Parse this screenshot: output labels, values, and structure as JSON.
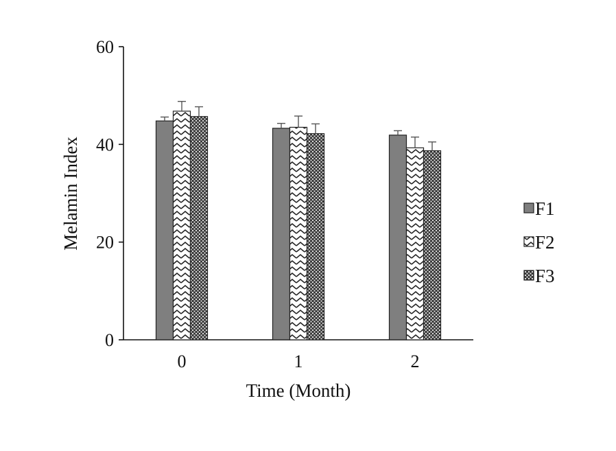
{
  "chart_data": {
    "type": "bar",
    "title": "",
    "xlabel": "Time (Month)",
    "ylabel": "Melamin Index",
    "categories": [
      "0",
      "1",
      "2"
    ],
    "ylim": [
      0,
      60
    ],
    "yticks": [
      "0",
      "20",
      "40",
      "60"
    ],
    "grid": false,
    "legend_position": "right",
    "series": [
      {
        "name": "F1",
        "values": [
          44.8,
          43.3,
          41.9
        ],
        "errors": [
          0.8,
          1.0,
          0.9
        ],
        "fill": "solid",
        "color": "#7f7f7f"
      },
      {
        "name": "F2",
        "values": [
          46.8,
          43.5,
          39.3
        ],
        "errors": [
          2.0,
          2.3,
          2.2
        ],
        "fill": "zigzag",
        "color": "#ffffff"
      },
      {
        "name": "F3",
        "values": [
          45.7,
          42.2,
          38.7
        ],
        "errors": [
          2.0,
          2.0,
          1.8
        ],
        "fill": "dotted",
        "color": "#404040"
      }
    ]
  }
}
